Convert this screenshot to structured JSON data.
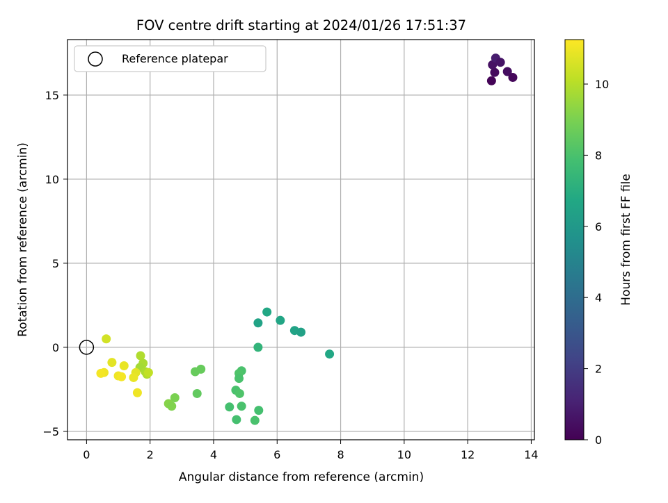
{
  "chart_data": {
    "type": "scatter",
    "title": "FOV centre drift starting at 2024/01/26 17:51:37",
    "xlabel": "Angular distance from reference (arcmin)",
    "ylabel": "Rotation from reference (arcmin)",
    "xlim": [
      -0.6,
      14.1
    ],
    "ylim": [
      -5.5,
      18.3
    ],
    "xticks": [
      "0",
      "2",
      "4",
      "6",
      "8",
      "10",
      "12",
      "14"
    ],
    "yticks": [
      "−5",
      "0",
      "5",
      "10",
      "15"
    ],
    "grid": true,
    "legend": {
      "placement": "top-left",
      "entries": [
        "Reference platepar"
      ]
    },
    "reference_point": {
      "x": 0,
      "y": 0
    },
    "colorbar": {
      "label": "Hours from first FF file",
      "colormap": "viridis",
      "range": [
        0,
        11.25
      ],
      "ticks": [
        "0",
        "2",
        "4",
        "6",
        "8",
        "10"
      ]
    },
    "series": [
      {
        "points": [
          {
            "x": 12.75,
            "y": 15.85,
            "c": 0.1
          },
          {
            "x": 12.85,
            "y": 16.35,
            "c": 0.3
          },
          {
            "x": 12.78,
            "y": 16.8,
            "c": 0.5
          },
          {
            "x": 12.88,
            "y": 17.2,
            "c": 0.9
          },
          {
            "x": 13.03,
            "y": 16.95,
            "c": 0.6
          },
          {
            "x": 13.25,
            "y": 16.4,
            "c": 0.4
          },
          {
            "x": 13.42,
            "y": 16.05,
            "c": 0.2
          },
          {
            "x": 5.68,
            "y": 2.1,
            "c": 6.7
          },
          {
            "x": 6.1,
            "y": 1.6,
            "c": 6.6
          },
          {
            "x": 5.4,
            "y": 1.45,
            "c": 6.5
          },
          {
            "x": 6.55,
            "y": 1.0,
            "c": 6.5
          },
          {
            "x": 6.75,
            "y": 0.9,
            "c": 6.4
          },
          {
            "x": 5.4,
            "y": 0.0,
            "c": 7.3
          },
          {
            "x": 7.65,
            "y": -0.4,
            "c": 6.7
          },
          {
            "x": 4.88,
            "y": -1.4,
            "c": 8.0
          },
          {
            "x": 4.8,
            "y": -1.55,
            "c": 8.1
          },
          {
            "x": 4.8,
            "y": -1.85,
            "c": 8.0
          },
          {
            "x": 4.7,
            "y": -2.55,
            "c": 8.0
          },
          {
            "x": 4.82,
            "y": -2.75,
            "c": 8.1
          },
          {
            "x": 4.5,
            "y": -3.55,
            "c": 7.9
          },
          {
            "x": 4.88,
            "y": -3.5,
            "c": 8.0
          },
          {
            "x": 5.42,
            "y": -3.75,
            "c": 7.9
          },
          {
            "x": 4.72,
            "y": -4.3,
            "c": 7.9
          },
          {
            "x": 5.3,
            "y": -4.35,
            "c": 8.0
          },
          {
            "x": 3.42,
            "y": -1.45,
            "c": 8.6
          },
          {
            "x": 3.6,
            "y": -1.3,
            "c": 8.6
          },
          {
            "x": 3.48,
            "y": -2.75,
            "c": 8.5
          },
          {
            "x": 2.78,
            "y": -3.0,
            "c": 9.0
          },
          {
            "x": 2.58,
            "y": -3.35,
            "c": 9.2
          },
          {
            "x": 2.68,
            "y": -3.5,
            "c": 9.1
          },
          {
            "x": 1.7,
            "y": -0.5,
            "c": 9.9
          },
          {
            "x": 1.78,
            "y": -0.95,
            "c": 9.8
          },
          {
            "x": 1.68,
            "y": -1.2,
            "c": 9.7
          },
          {
            "x": 1.85,
            "y": -1.45,
            "c": 9.8
          },
          {
            "x": 1.9,
            "y": -1.6,
            "c": 9.9
          },
          {
            "x": 1.95,
            "y": -1.5,
            "c": 10.2
          },
          {
            "x": 1.55,
            "y": -1.5,
            "c": 10.8
          },
          {
            "x": 1.48,
            "y": -1.8,
            "c": 10.9
          },
          {
            "x": 1.6,
            "y": -2.7,
            "c": 11.0
          },
          {
            "x": 1.18,
            "y": -1.1,
            "c": 10.9
          },
          {
            "x": 0.8,
            "y": -0.9,
            "c": 10.8
          },
          {
            "x": 1.0,
            "y": -1.7,
            "c": 11.0
          },
          {
            "x": 1.1,
            "y": -1.75,
            "c": 11.1
          },
          {
            "x": 0.55,
            "y": -1.5,
            "c": 11.0
          },
          {
            "x": 0.45,
            "y": -1.55,
            "c": 11.1
          },
          {
            "x": 0.62,
            "y": 0.5,
            "c": 10.5
          }
        ]
      }
    ]
  }
}
